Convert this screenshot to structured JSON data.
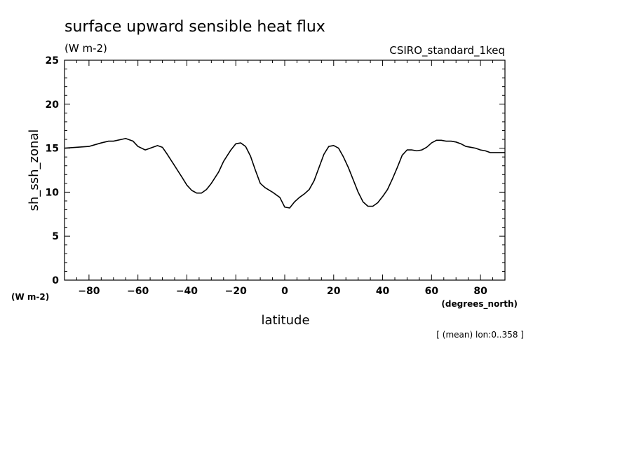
{
  "chart_data": {
    "type": "line",
    "title": "surface upward sensible heat flux",
    "subtitle": "(W m-2)",
    "source_label": "CSIRO_standard_1keq",
    "xlabel": "latitude",
    "x_unit": "(degrees_north)",
    "ylabel": "sh_ssh_zonal",
    "y_unit": "(W m-2)",
    "footnote": "[ (mean) lon:0..358 ]",
    "xlim": [
      -90,
      90
    ],
    "ylim": [
      0,
      25
    ],
    "xticks": [
      -80,
      -60,
      -40,
      -20,
      0,
      20,
      40,
      60,
      80
    ],
    "yticks": [
      0,
      5,
      10,
      15,
      20,
      25
    ],
    "grid": false,
    "line_color": "#000000",
    "series": [
      {
        "x": [
          -90,
          -85,
          -80,
          -75,
          -72,
          -70,
          -65,
          -62,
          -60,
          -57,
          -55,
          -52,
          -50,
          -48,
          -45,
          -42,
          -40,
          -38,
          -36,
          -34,
          -32,
          -30,
          -27,
          -25,
          -22,
          -20,
          -18,
          -16,
          -14,
          -12,
          -10,
          -8,
          -5,
          -2,
          0,
          2,
          4,
          6,
          8,
          10,
          12,
          14,
          16,
          18,
          20,
          22,
          24,
          26,
          28,
          30,
          32,
          34,
          36,
          38,
          40,
          42,
          44,
          46,
          48,
          50,
          52,
          54,
          56,
          58,
          60,
          62,
          64,
          66,
          68,
          70,
          72,
          74,
          76,
          78,
          80,
          82,
          84,
          86,
          88,
          90
        ],
        "y": [
          15.0,
          15.1,
          15.2,
          15.6,
          15.8,
          15.8,
          16.1,
          15.8,
          15.2,
          14.8,
          15.0,
          15.3,
          15.1,
          14.3,
          13.0,
          11.7,
          10.8,
          10.2,
          9.9,
          9.9,
          10.3,
          11.0,
          12.3,
          13.5,
          14.8,
          15.5,
          15.6,
          15.2,
          14.1,
          12.5,
          11.0,
          10.5,
          10.0,
          9.4,
          8.3,
          8.2,
          8.9,
          9.4,
          9.8,
          10.3,
          11.3,
          12.8,
          14.3,
          15.2,
          15.3,
          15.0,
          14.0,
          12.8,
          11.4,
          10.0,
          8.9,
          8.4,
          8.4,
          8.8,
          9.5,
          10.3,
          11.5,
          12.8,
          14.2,
          14.8,
          14.8,
          14.7,
          14.8,
          15.1,
          15.6,
          15.9,
          15.9,
          15.8,
          15.8,
          15.7,
          15.5,
          15.2,
          15.1,
          15.0,
          14.8,
          14.7,
          14.5,
          14.5,
          14.5,
          14.5
        ]
      }
    ]
  }
}
